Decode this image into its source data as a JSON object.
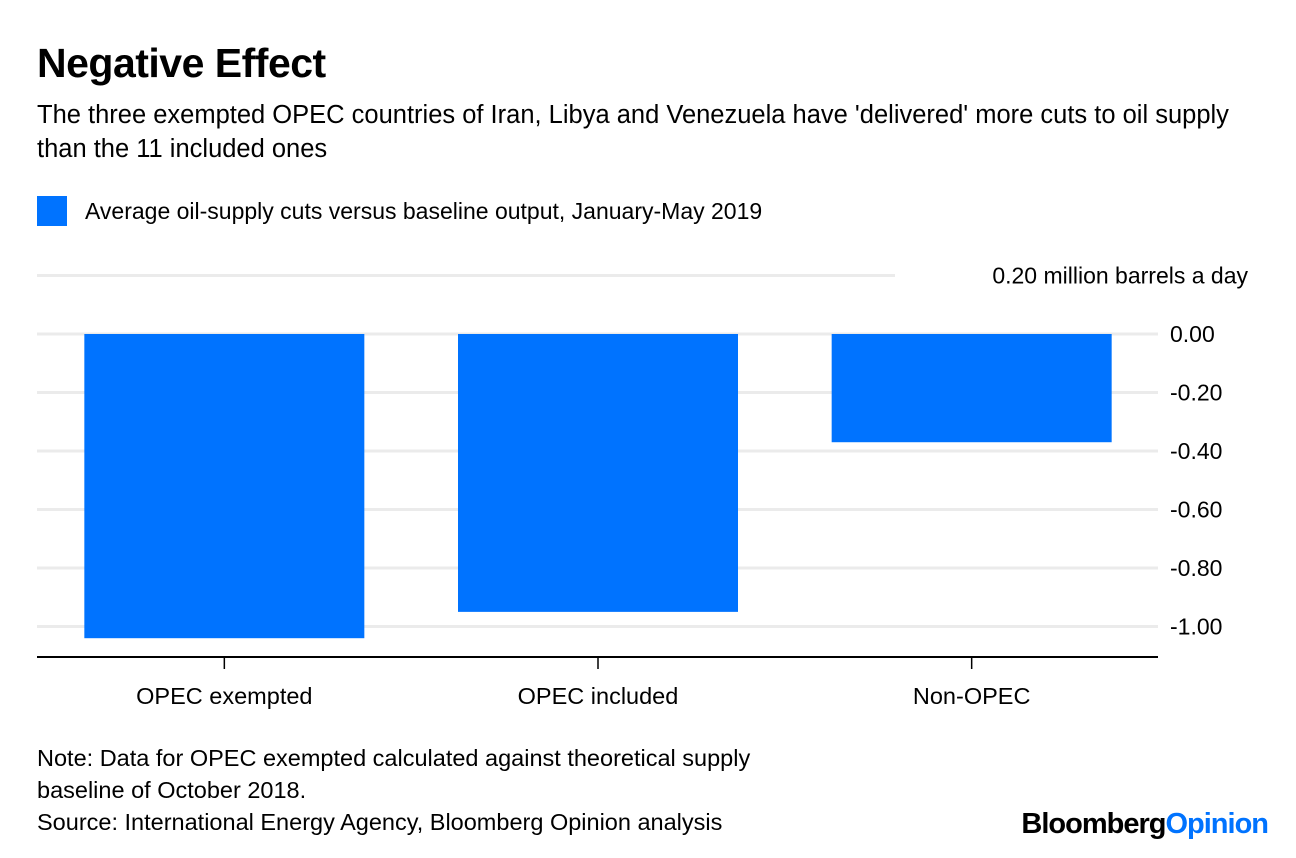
{
  "title": "Negative Effect",
  "subtitle": "The three exempted OPEC countries of Iran, Libya and Venezuela have 'delivered' more cuts to oil supply than the 11 included ones",
  "notes": [
    "Note: Data for OPEC exempted calculated against theoretical supply",
    "baseline of October 2018.",
    "Source: International Energy Agency, Bloomberg Opinion analysis"
  ],
  "logo": {
    "part1": "Bloomberg",
    "part2": "Opinion",
    "color2": "#0073ff"
  },
  "chart_data": {
    "type": "bar",
    "categories": [
      "OPEC exempted",
      "OPEC included",
      "Non-OPEC"
    ],
    "series": [
      {
        "name": "Average oil-supply cuts versus baseline output, January-May 2019",
        "values": [
          -1.04,
          -0.95,
          -0.37
        ],
        "color": "#0073ff"
      }
    ],
    "ylabel_unit": "million barrels a day",
    "yticks": [
      "0.20",
      "0.00",
      "-0.20",
      "-0.40",
      "-0.60",
      "-0.80",
      "-1.00"
    ],
    "ylim": [
      -1.1,
      0.2
    ],
    "grid": true,
    "y_axis_side": "right",
    "legend_position": "top-left"
  }
}
